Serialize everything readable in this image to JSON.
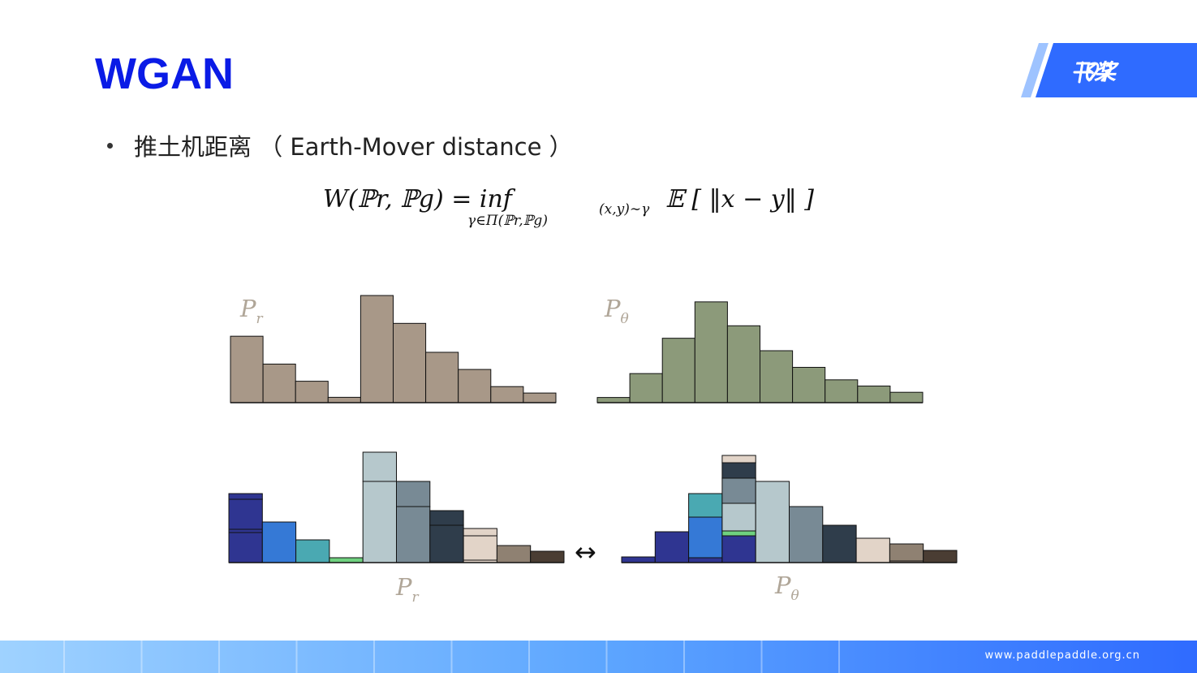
{
  "slide": {
    "title": "WGAN",
    "bullet": "推土机距离 （ Earth-Mover distance ）",
    "footer_url": "www.paddlepaddle.org.cn"
  },
  "logo": {
    "text": "飞桨",
    "mark_icon": "paddle-logo-icon",
    "bg_color": "#2f6bff"
  },
  "formula": {
    "main": "W(ℙr, ℙg) = inf",
    "subscript": "γ∈Π(ℙr,ℙg)",
    "expectation_sub": "(x,y)∼γ",
    "rest": "𝔼 [ ‖x − y‖ ]"
  },
  "diagram": {
    "top_left_label": "Pr",
    "top_right_label": "Pθ",
    "bottom_left_label": "Pr",
    "bottom_right_label": "Pθ",
    "arrow": "↔",
    "pr_color": "#a89888",
    "ptheta_color": "#8c9a7a",
    "pr_values": [
      0.62,
      0.36,
      0.2,
      0.05,
      1.0,
      0.74,
      0.47,
      0.31,
      0.15,
      0.09
    ],
    "ptheta_values": [
      0.05,
      0.28,
      0.62,
      0.97,
      0.74,
      0.5,
      0.34,
      0.22,
      0.16,
      0.1
    ]
  }
}
